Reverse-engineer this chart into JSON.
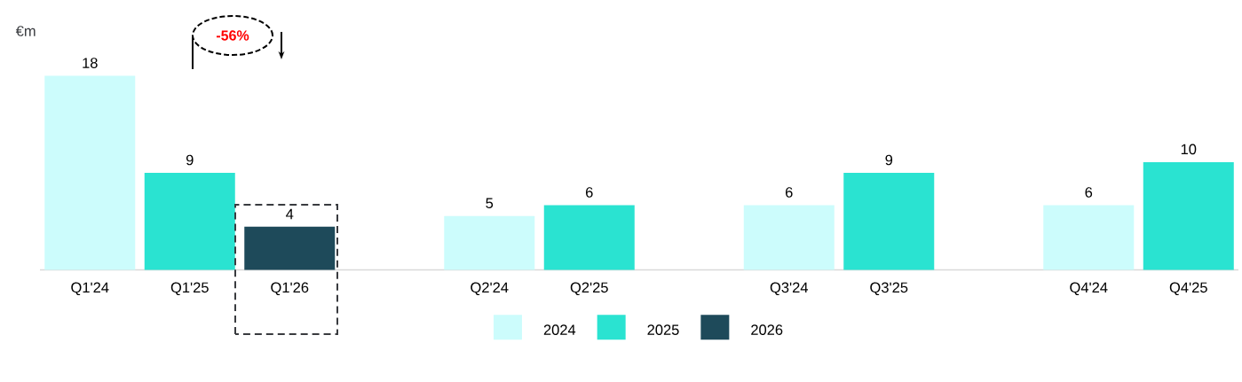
{
  "chart_data": {
    "type": "bar",
    "ylabel": "€m",
    "categories": [
      "Q1'24",
      "Q1'25",
      "Q1'26",
      null,
      "Q2'24",
      "Q2'25",
      null,
      "Q3'24",
      "Q3'25",
      null,
      "Q4'24",
      "Q4'25"
    ],
    "series": [
      {
        "name": "2024",
        "color": "#ccfcfc",
        "values": [
          18,
          null,
          null,
          null,
          5,
          null,
          null,
          6,
          null,
          null,
          6,
          null
        ]
      },
      {
        "name": "2025",
        "color": "#2ae3d1",
        "values": [
          null,
          9,
          null,
          null,
          null,
          6,
          null,
          null,
          9,
          null,
          null,
          10
        ]
      },
      {
        "name": "2026",
        "color": "#1e4a5a",
        "values": [
          null,
          null,
          4,
          null,
          null,
          null,
          null,
          null,
          null,
          null,
          null,
          null
        ]
      }
    ],
    "data_labels": true,
    "legend": "bottom",
    "annotations": [
      "-56%"
    ]
  }
}
